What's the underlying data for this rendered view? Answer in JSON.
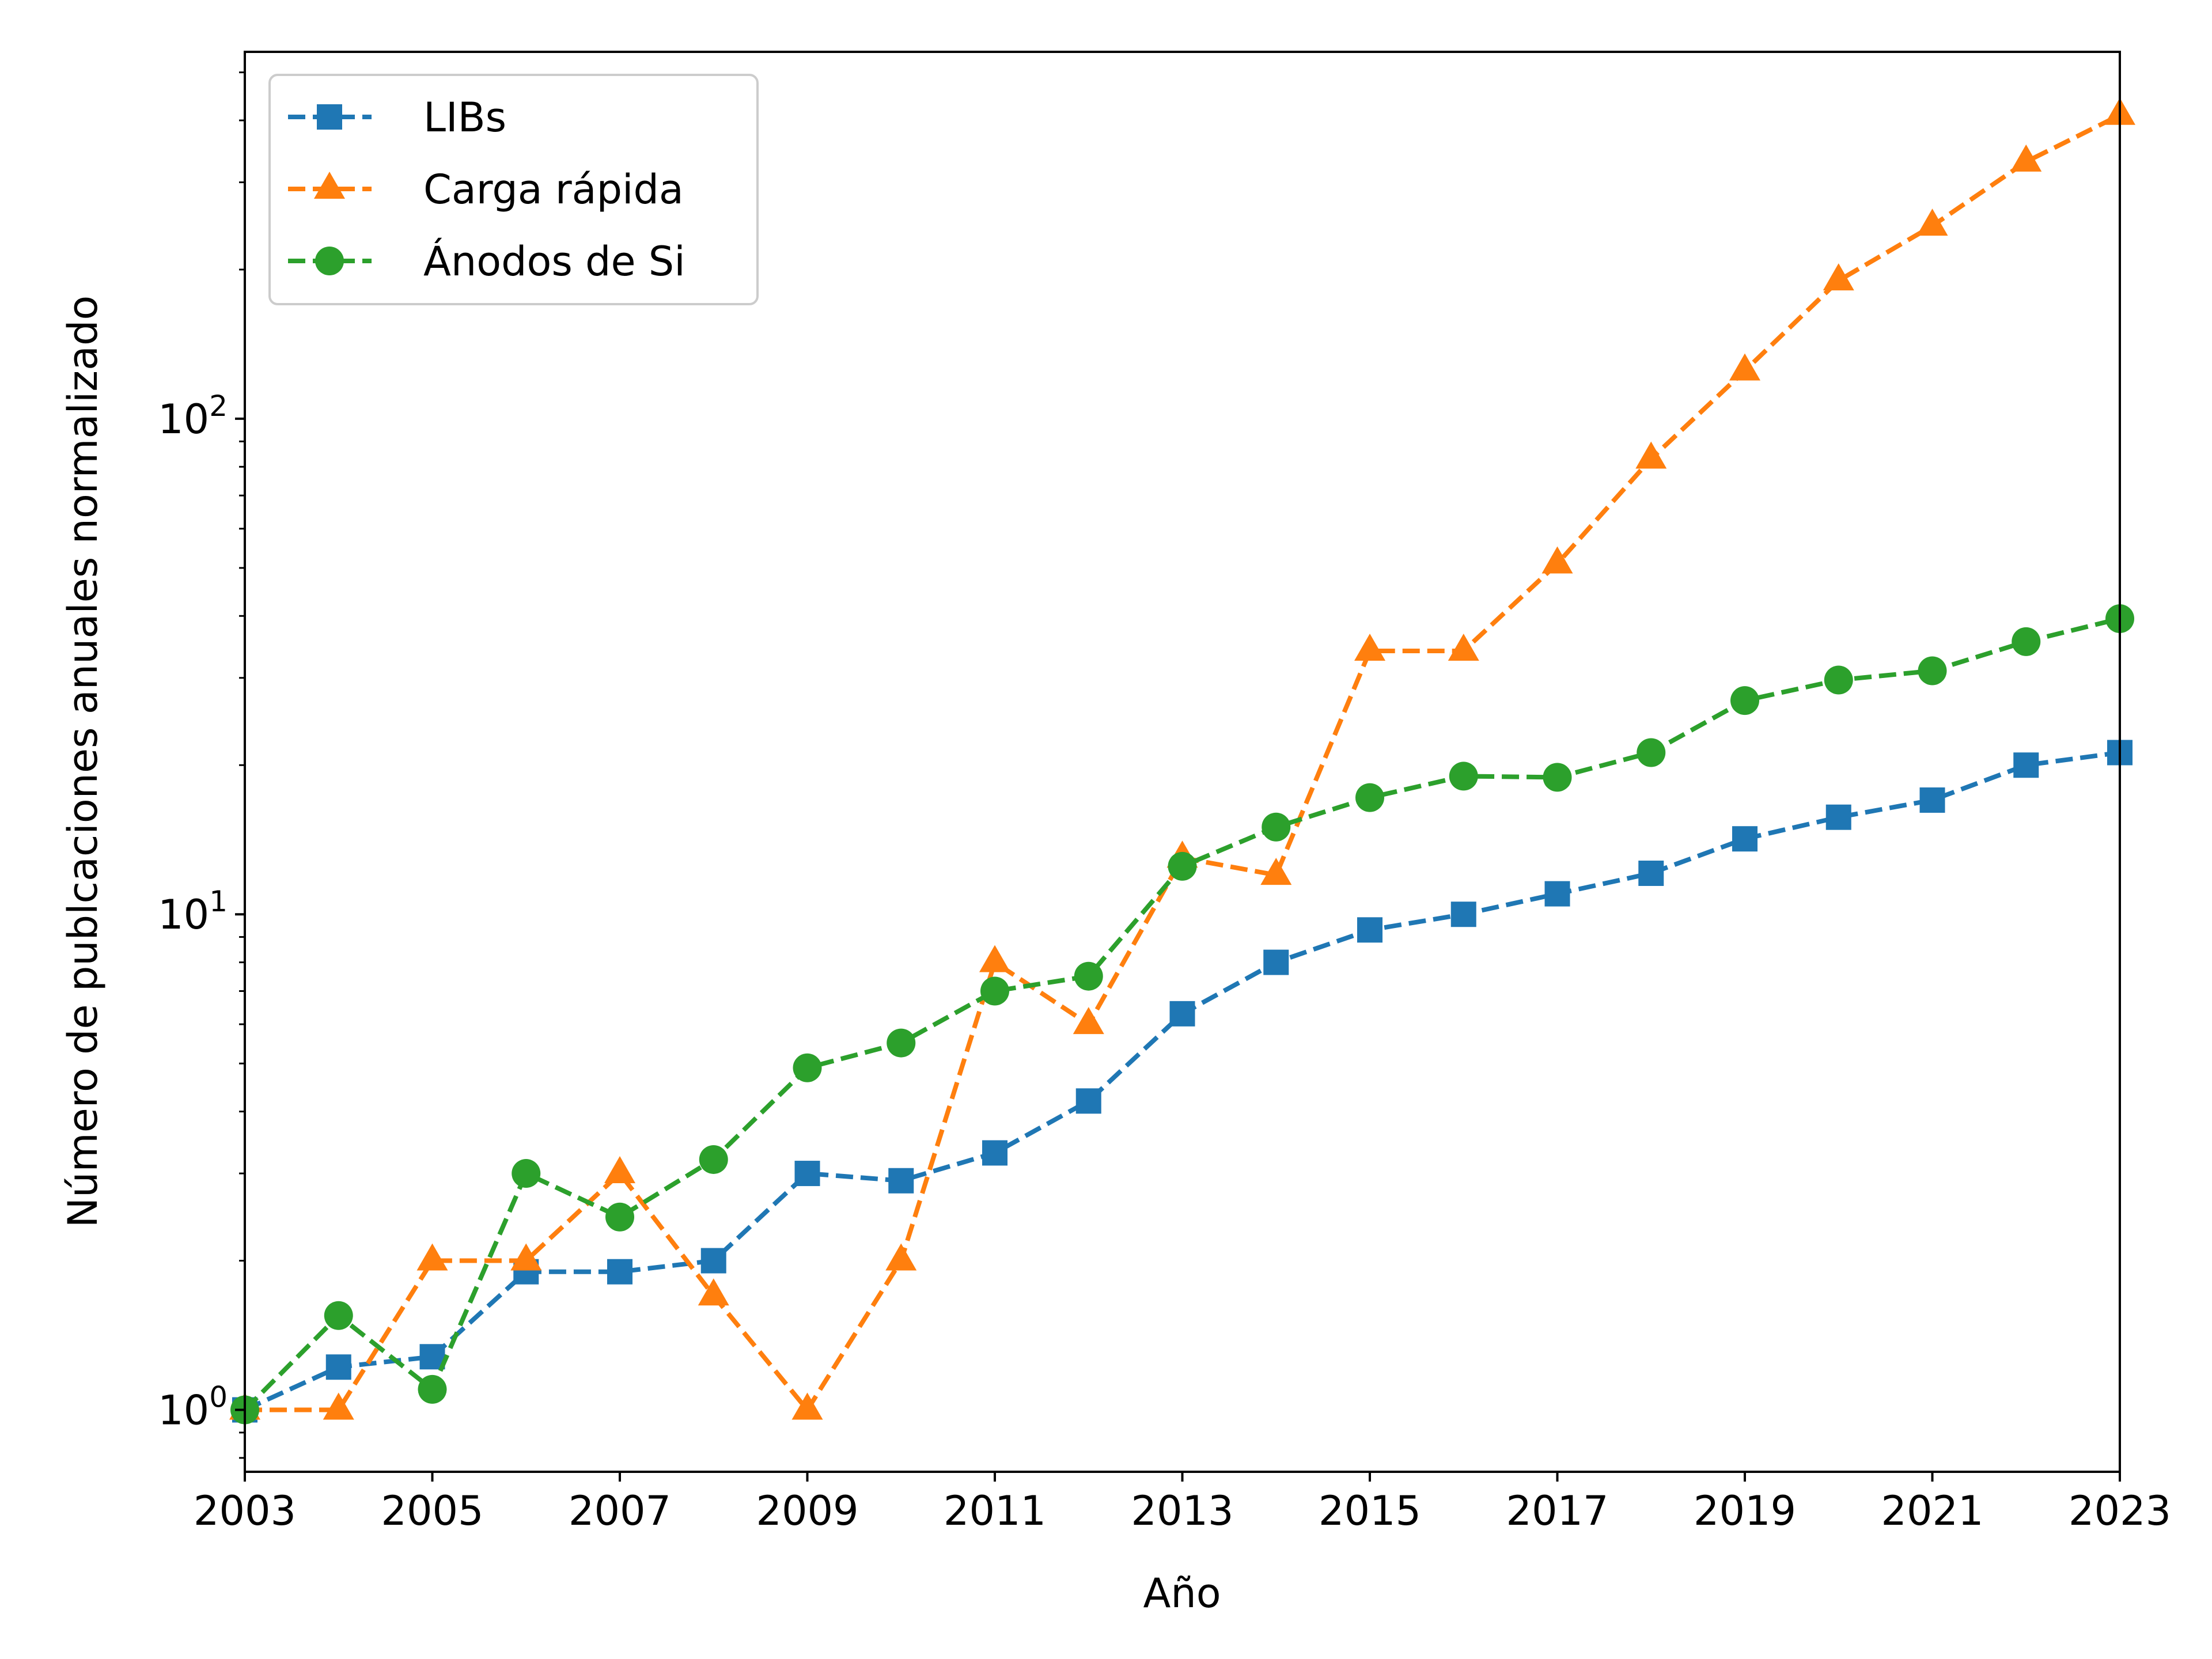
{
  "chart_data": {
    "type": "line",
    "xlabel": "Año",
    "ylabel": "Número de publcaciones anuales normalizado",
    "xlim": [
      2003,
      2023
    ],
    "ylim": [
      0.75,
      550
    ],
    "yscale": "log",
    "grid": false,
    "legend_position": "top-left",
    "x_ticks": [
      2003,
      2005,
      2007,
      2009,
      2011,
      2013,
      2015,
      2017,
      2019,
      2021,
      2023
    ],
    "y_ticks": [
      {
        "value": 1,
        "base": "10",
        "exp": "0"
      },
      {
        "value": 10,
        "base": "10",
        "exp": "1"
      },
      {
        "value": 100,
        "base": "10",
        "exp": "2"
      }
    ],
    "x": [
      2003,
      2004,
      2005,
      2006,
      2007,
      2008,
      2009,
      2010,
      2011,
      2012,
      2013,
      2014,
      2015,
      2016,
      2017,
      2018,
      2019,
      2020,
      2021,
      2022,
      2023
    ],
    "series": [
      {
        "name": "LIBs",
        "color": "#1f77b4",
        "marker": "square",
        "values": [
          1.0,
          1.22,
          1.28,
          1.9,
          1.9,
          2.0,
          3.0,
          2.9,
          3.3,
          4.2,
          6.3,
          8.0,
          9.3,
          10.0,
          11.0,
          12.1,
          14.2,
          15.7,
          17.0,
          20.0,
          21.2
        ]
      },
      {
        "name": "Carga rápida",
        "color": "#ff7f0e",
        "marker": "triangle",
        "values": [
          1.0,
          1.0,
          2.0,
          2.0,
          3.0,
          1.7,
          1.0,
          2.0,
          8.0,
          6.0,
          13.0,
          12.0,
          34.0,
          34.0,
          51.0,
          83.0,
          125.0,
          190.0,
          245.0,
          330.0,
          410.0
        ]
      },
      {
        "name": "Ánodos de Si",
        "color": "#2ca02c",
        "marker": "circle",
        "values": [
          1.0,
          1.55,
          1.1,
          3.0,
          2.45,
          3.2,
          4.9,
          5.5,
          7.0,
          7.5,
          12.5,
          15.0,
          17.2,
          19.0,
          18.9,
          21.2,
          27.0,
          29.7,
          31.0,
          35.5,
          39.5
        ]
      }
    ]
  }
}
